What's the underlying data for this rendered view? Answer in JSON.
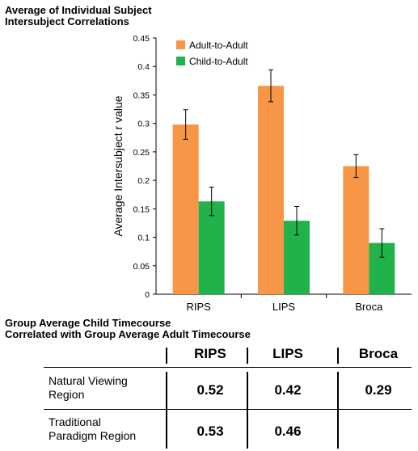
{
  "chart_data": {
    "type": "bar",
    "title": "Average of Individual Subject\nIntersubject Correlations",
    "ylabel": "Average Intersubject  r value",
    "xlabel": "",
    "ylim": [
      0,
      0.45
    ],
    "yticks": [
      "0",
      "0.05",
      "0.1",
      "0.15",
      "0.2",
      "0.25",
      "0.3",
      "0.35",
      "0.4",
      "0.45"
    ],
    "categories": [
      "RIPS",
      "LIPS",
      "Broca"
    ],
    "legend_position": "top-left",
    "grid": false,
    "series": [
      {
        "name": "Adult-to-Adult",
        "color": "#F79646",
        "values": [
          0.298,
          0.366,
          0.225
        ],
        "errors": [
          0.026,
          0.028,
          0.02
        ]
      },
      {
        "name": "Child-to-Adult",
        "color": "#21B24B",
        "values": [
          0.163,
          0.129,
          0.09
        ],
        "errors": [
          0.025,
          0.025,
          0.025
        ]
      }
    ]
  },
  "table": {
    "title": "Group Average Child Timecourse\nCorrelated with Group Average Adult Timecourse",
    "columns": [
      "RIPS",
      "LIPS",
      "Broca"
    ],
    "rows": [
      {
        "label": "Natural Viewing\nRegion",
        "values": [
          "0.52",
          "0.42",
          "0.29"
        ]
      },
      {
        "label": "Traditional\nParadigm Region",
        "values": [
          "0.53",
          "0.46",
          ""
        ]
      }
    ]
  }
}
